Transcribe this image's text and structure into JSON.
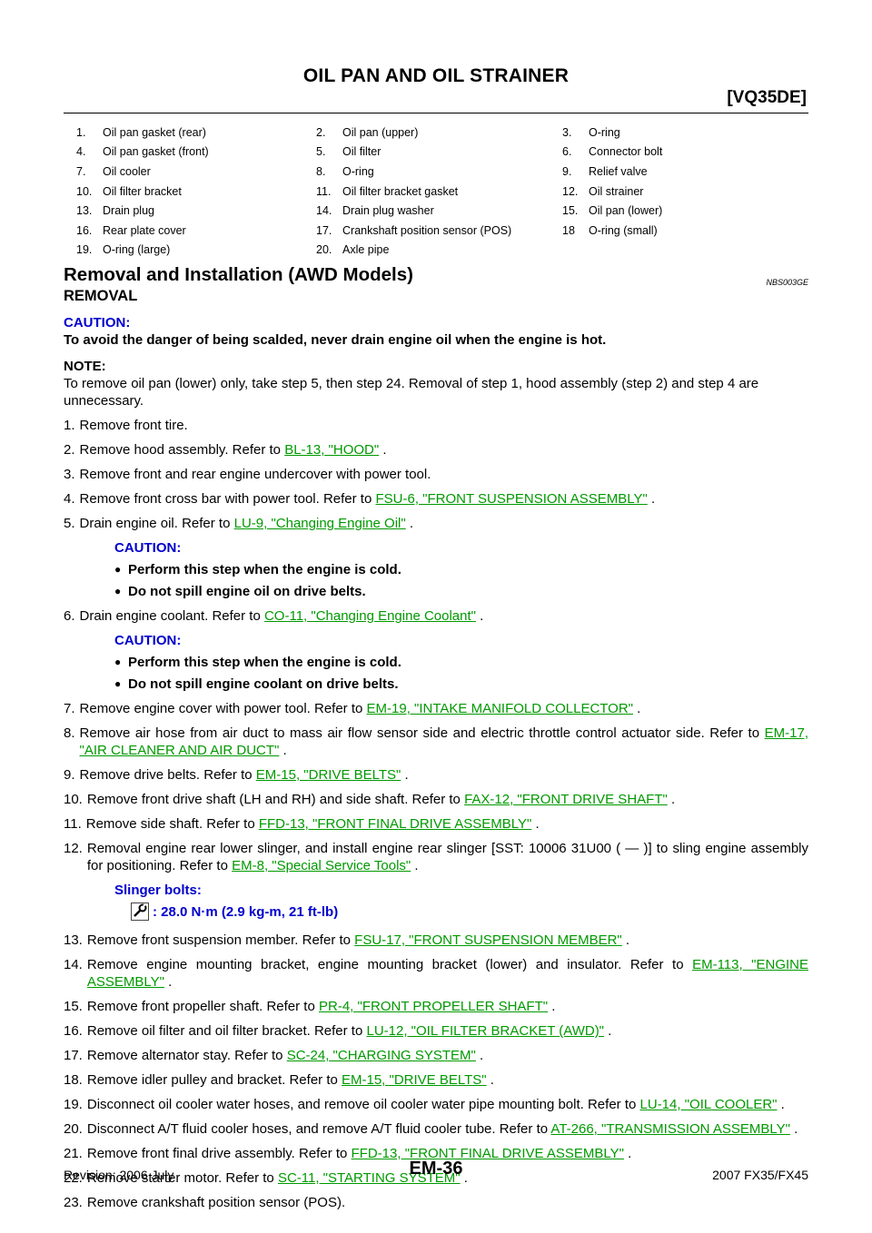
{
  "header": {
    "title": "OIL PAN AND OIL STRAINER",
    "engine_code": "[VQ35DE]"
  },
  "parts": [
    [
      {
        "n": "1.",
        "t": "Oil pan gasket (rear)"
      },
      {
        "n": "2.",
        "t": "Oil pan (upper)"
      },
      {
        "n": "3.",
        "t": "O-ring"
      }
    ],
    [
      {
        "n": "4.",
        "t": "Oil pan gasket (front)"
      },
      {
        "n": "5.",
        "t": "Oil filter"
      },
      {
        "n": "6.",
        "t": "Connector bolt"
      }
    ],
    [
      {
        "n": "7.",
        "t": "Oil cooler"
      },
      {
        "n": "8.",
        "t": "O-ring"
      },
      {
        "n": "9.",
        "t": "Relief valve"
      }
    ],
    [
      {
        "n": "10.",
        "t": "Oil filter bracket"
      },
      {
        "n": "11.",
        "t": "Oil filter bracket gasket"
      },
      {
        "n": "12.",
        "t": "Oil strainer"
      }
    ],
    [
      {
        "n": "13.",
        "t": "Drain plug"
      },
      {
        "n": "14.",
        "t": "Drain plug washer"
      },
      {
        "n": "15.",
        "t": "Oil pan (lower)"
      }
    ],
    [
      {
        "n": "16.",
        "t": "Rear plate cover"
      },
      {
        "n": "17.",
        "t": "Crankshaft position sensor (POS)"
      },
      {
        "n": "18",
        "t": "O-ring (small)"
      }
    ],
    [
      {
        "n": "19.",
        "t": "O-ring (large)"
      },
      {
        "n": "20.",
        "t": "Axle pipe"
      },
      {
        "n": "",
        "t": ""
      }
    ]
  ],
  "section": {
    "title": "Removal and Installation (AWD Models)",
    "id": "NBS003GE",
    "subtitle": "REMOVAL",
    "caution_label": "CAUTION:",
    "caution_text": "To avoid the danger of being scalded, never drain engine oil when the engine is hot.",
    "note_label": "NOTE:",
    "note_text": "To remove oil pan (lower) only, take step 5, then step 24. Removal of step 1, hood assembly (step 2) and step 4 are unnecessary."
  },
  "steps": [
    {
      "n": "1.",
      "pre": "Remove front tire.",
      "link": "",
      "post": ""
    },
    {
      "n": "2.",
      "pre": "Remove hood assembly. Refer to ",
      "link": "BL-13, \"HOOD\"",
      "post": " ."
    },
    {
      "n": "3.",
      "pre": "Remove front and rear engine undercover with power tool.",
      "link": "",
      "post": ""
    },
    {
      "n": "4.",
      "pre": "Remove front cross bar with power tool. Refer to ",
      "link": "FSU-6, \"FRONT SUSPENSION ASSEMBLY\"",
      "post": " ."
    },
    {
      "n": "5.",
      "pre": "Drain engine oil. Refer to ",
      "link": "LU-9, \"Changing Engine Oil\"",
      "post": " ."
    },
    {
      "n": "6.",
      "pre": "Drain engine coolant. Refer to ",
      "link": "CO-11, \"Changing Engine Coolant\"",
      "post": " ."
    },
    {
      "n": "7.",
      "pre": "Remove engine cover with power tool. Refer to ",
      "link": "EM-19, \"INTAKE MANIFOLD COLLECTOR\"",
      "post": " ."
    },
    {
      "n": "8.",
      "pre": "Remove air hose from air duct to mass air flow sensor side and electric throttle control actuator side. Refer to ",
      "link": "EM-17, \"AIR CLEANER AND AIR DUCT\"",
      "post": " ."
    },
    {
      "n": "9.",
      "pre": "Remove drive belts. Refer to ",
      "link": "EM-15, \"DRIVE BELTS\"",
      "post": " ."
    },
    {
      "n": "10.",
      "pre": "Remove front drive shaft (LH and RH) and side shaft. Refer to ",
      "link": "FAX-12, \"FRONT DRIVE SHAFT\"",
      "post": " ."
    },
    {
      "n": "11.",
      "pre": "Remove side shaft. Refer to ",
      "link": "FFD-13, \"FRONT FINAL DRIVE ASSEMBLY\"",
      "post": " ."
    },
    {
      "n": "12.",
      "pre": "Removal engine rear lower slinger, and install engine rear slinger [SST: 10006 31U00 (    —    )] to sling engine assembly for positioning. Refer to ",
      "link": "EM-8, \"Special Service Tools\"",
      "post": " ."
    },
    {
      "n": "13.",
      "pre": "Remove front suspension member. Refer to  ",
      "link": "FSU-17, \"FRONT SUSPENSION MEMBER\"",
      "post": " ."
    },
    {
      "n": "14.",
      "pre": "Remove engine mounting bracket, engine mounting bracket (lower) and insulator. Refer to ",
      "link": "EM-113, \"ENGINE ASSEMBLY\"",
      "post": " ."
    },
    {
      "n": "15.",
      "pre": "Remove front propeller shaft. Refer to ",
      "link": "PR-4, \"FRONT PROPELLER SHAFT\"",
      "post": " ."
    },
    {
      "n": "16.",
      "pre": "Remove oil filter and oil filter bracket. Refer to ",
      "link": "LU-12, \"OIL FILTER BRACKET (AWD)\"",
      "post": " ."
    },
    {
      "n": "17.",
      "pre": "Remove alternator stay. Refer to ",
      "link": "SC-24, \"CHARGING SYSTEM\"",
      "post": " ."
    },
    {
      "n": "18.",
      "pre": "Remove idler pulley and bracket. Refer to ",
      "link": "EM-15, \"DRIVE BELTS\"",
      "post": " ."
    },
    {
      "n": "19.",
      "pre": "Disconnect oil cooler water hoses, and remove oil cooler water pipe mounting bolt. Refer to ",
      "link": "LU-14, \"OIL COOLER\"",
      "post": " ."
    },
    {
      "n": "20.",
      "pre": "Disconnect A/T fluid cooler hoses, and remove A/T fluid cooler tube. Refer to ",
      "link": "AT-266, \"TRANSMISSION ASSEMBLY\"",
      "post": " ."
    },
    {
      "n": "21.",
      "pre": "Remove front final drive assembly. Refer to ",
      "link": "FFD-13, \"FRONT FINAL DRIVE ASSEMBLY\"",
      "post": " ."
    },
    {
      "n": "22.",
      "pre": "Remove starter motor. Refer to ",
      "link": "SC-11, \"STARTING SYSTEM\"",
      "post": " ."
    },
    {
      "n": "23.",
      "pre": "Remove crankshaft position sensor (POS).",
      "link": "",
      "post": ""
    }
  ],
  "step5_caution": {
    "label": "CAUTION:",
    "items": [
      "Perform this step when the engine is cold.",
      "Do not spill engine oil on drive belts."
    ]
  },
  "step6_caution": {
    "label": "CAUTION:",
    "items": [
      "Perform this step when the engine is cold.",
      "Do not spill engine coolant on drive belts."
    ]
  },
  "slinger": {
    "label": "Slinger bolts:",
    "torque": ": 28.0 N·m (2.9 kg-m, 21 ft-lb)",
    "icon": "torque-wrench-icon"
  },
  "footer": {
    "revision": "Revision: 2006 July",
    "page": "EM-36",
    "model": "2007 FX35/FX45"
  }
}
